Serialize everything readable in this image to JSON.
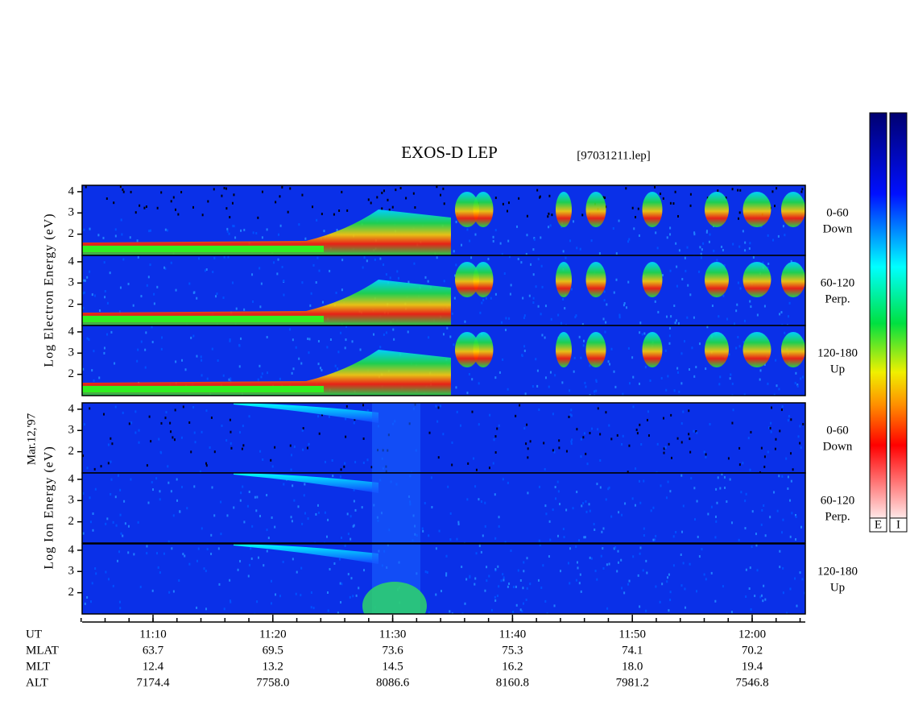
{
  "title": "EXOS-D LEP",
  "file": "[97031211.lep]",
  "date_label": "Mar.12,'97",
  "electron": {
    "axis_label": "Log Electron Energy (eV)",
    "panels": [
      {
        "label": [
          "0-60",
          "Down"
        ]
      },
      {
        "label": [
          "60-120",
          "Perp."
        ]
      },
      {
        "label": [
          "120-180",
          "Up"
        ]
      }
    ]
  },
  "ion": {
    "axis_label": "Log Ion Energy (eV)",
    "panels": [
      {
        "label": [
          "0-60",
          "Down"
        ]
      },
      {
        "label": [
          "60-120",
          "Perp."
        ]
      },
      {
        "label": [
          "120-180",
          "Up"
        ]
      }
    ]
  },
  "ylim": [
    1,
    4.3
  ],
  "yticks": [
    2,
    3,
    4
  ],
  "colorbars": [
    "E",
    "I"
  ],
  "table": {
    "rows": [
      {
        "label": "UT",
        "values": [
          "11:10",
          "11:20",
          "11:30",
          "11:40",
          "11:50",
          "12:00"
        ]
      },
      {
        "label": "MLAT",
        "values": [
          "63.7",
          "69.5",
          "73.6",
          "75.3",
          "74.1",
          "70.2"
        ]
      },
      {
        "label": "MLT",
        "values": [
          "12.4",
          "13.2",
          "14.5",
          "16.2",
          "18.0",
          "19.4"
        ]
      },
      {
        "label": "ALT",
        "values": [
          "7174.4",
          "7758.0",
          "8086.6",
          "8160.8",
          "7981.2",
          "7546.8"
        ]
      }
    ]
  }
}
